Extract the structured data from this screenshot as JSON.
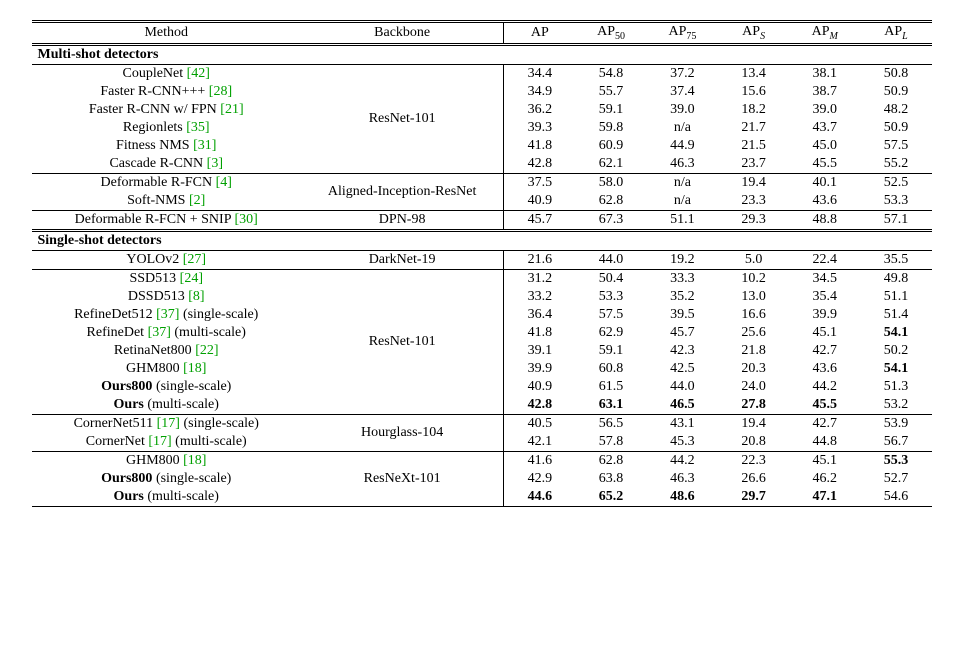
{
  "headers": {
    "method": "Method",
    "backbone": "Backbone",
    "ap": "AP",
    "ap50": "AP",
    "ap50_sub": "50",
    "ap75": "AP",
    "ap75_sub": "75",
    "aps": "AP",
    "aps_sub": "S",
    "apm": "AP",
    "apm_sub": "M",
    "apl": "AP",
    "apl_sub": "L"
  },
  "section_multi": "Multi-shot detectors",
  "section_single": "Single-shot detectors",
  "backbones": {
    "resnet101": "ResNet-101",
    "aligned": "Aligned-Inception-ResNet",
    "dpn98": "DPN-98",
    "darknet19": "DarkNet-19",
    "hourglass": "Hourglass-104",
    "resnext101": "ResNeXt-101"
  },
  "rows": {
    "couplenet": {
      "name": "CoupleNet ",
      "ref": "[42]",
      "ap": "34.4",
      "ap50": "54.8",
      "ap75": "37.2",
      "aps": "13.4",
      "apm": "38.1",
      "apl": "50.8"
    },
    "frcnnppp": {
      "name": "Faster R-CNN+++ ",
      "ref": "[28]",
      "ap": "34.9",
      "ap50": "55.7",
      "ap75": "37.4",
      "aps": "15.6",
      "apm": "38.7",
      "apl": "50.9"
    },
    "frcnnfpn": {
      "name": "Faster R-CNN w/ FPN ",
      "ref": "[21]",
      "ap": "36.2",
      "ap50": "59.1",
      "ap75": "39.0",
      "aps": "18.2",
      "apm": "39.0",
      "apl": "48.2"
    },
    "regionlets": {
      "name": "Regionlets ",
      "ref": "[35]",
      "ap": "39.3",
      "ap50": "59.8",
      "ap75": "n/a",
      "aps": "21.7",
      "apm": "43.7",
      "apl": "50.9"
    },
    "fitness": {
      "name": "Fitness NMS ",
      "ref": "[31]",
      "ap": "41.8",
      "ap50": "60.9",
      "ap75": "44.9",
      "aps": "21.5",
      "apm": "45.0",
      "apl": "57.5"
    },
    "cascade": {
      "name": "Cascade R-CNN ",
      "ref": "[3]",
      "ap": "42.8",
      "ap50": "62.1",
      "ap75": "46.3",
      "aps": "23.7",
      "apm": "45.5",
      "apl": "55.2"
    },
    "defrfcn": {
      "name": "Deformable R-FCN ",
      "ref": "[4]",
      "ap": "37.5",
      "ap50": "58.0",
      "ap75": "n/a",
      "aps": "19.4",
      "apm": "40.1",
      "apl": "52.5"
    },
    "softnms": {
      "name": "Soft-NMS ",
      "ref": "[2]",
      "ap": "40.9",
      "ap50": "62.8",
      "ap75": "n/a",
      "aps": "23.3",
      "apm": "43.6",
      "apl": "53.3"
    },
    "defsnip": {
      "name": "Deformable R-FCN + SNIP ",
      "ref": "[30]",
      "ap": "45.7",
      "ap50": "67.3",
      "ap75": "51.1",
      "aps": "29.3",
      "apm": "48.8",
      "apl": "57.1"
    },
    "yolov2": {
      "name": "YOLOv2 ",
      "ref": "[27]",
      "ap": "21.6",
      "ap50": "44.0",
      "ap75": "19.2",
      "aps": "5.0",
      "apm": "22.4",
      "apl": "35.5"
    },
    "ssd513": {
      "name": "SSD513 ",
      "ref": "[24]",
      "ap": "31.2",
      "ap50": "50.4",
      "ap75": "33.3",
      "aps": "10.2",
      "apm": "34.5",
      "apl": "49.8"
    },
    "dssd513": {
      "name": "DSSD513 ",
      "ref": "[8]",
      "ap": "33.2",
      "ap50": "53.3",
      "ap75": "35.2",
      "aps": "13.0",
      "apm": "35.4",
      "apl": "51.1"
    },
    "refinedet512": {
      "name": "RefineDet512 ",
      "ref": "[37]",
      "suffix": " (single-scale)",
      "ap": "36.4",
      "ap50": "57.5",
      "ap75": "39.5",
      "aps": "16.6",
      "apm": "39.9",
      "apl": "51.4"
    },
    "refinedetms": {
      "name": "RefineDet ",
      "ref": "[37]",
      "suffix": " (multi-scale)",
      "ap": "41.8",
      "ap50": "62.9",
      "ap75": "45.7",
      "aps": "25.6",
      "apm": "45.1",
      "apl": "54.1"
    },
    "retinanet": {
      "name": "RetinaNet800 ",
      "ref": "[22]",
      "ap": "39.1",
      "ap50": "59.1",
      "ap75": "42.3",
      "aps": "21.8",
      "apm": "42.7",
      "apl": "50.2"
    },
    "ghm800a": {
      "name": "GHM800 ",
      "ref": "[18]",
      "ap": "39.9",
      "ap50": "60.8",
      "ap75": "42.5",
      "aps": "20.3",
      "apm": "43.6",
      "apl": "54.1"
    },
    "ours800a": {
      "name": "Ours800",
      "suffix": " (single-scale)",
      "ap": "40.9",
      "ap50": "61.5",
      "ap75": "44.0",
      "aps": "24.0",
      "apm": "44.2",
      "apl": "51.3"
    },
    "oursmsa": {
      "name": "Ours",
      "suffix": " (multi-scale)",
      "ap": "42.8",
      "ap50": "63.1",
      "ap75": "46.5",
      "aps": "27.8",
      "apm": "45.5",
      "apl": "53.2"
    },
    "cornernet511": {
      "name": "CornerNet511 ",
      "ref": "[17]",
      "suffix": " (single-scale)",
      "ap": "40.5",
      "ap50": "56.5",
      "ap75": "43.1",
      "aps": "19.4",
      "apm": "42.7",
      "apl": "53.9"
    },
    "cornernetms": {
      "name": "CornerNet ",
      "ref": "[17]",
      "suffix": " (multi-scale)",
      "ap": "42.1",
      "ap50": "57.8",
      "ap75": "45.3",
      "aps": "20.8",
      "apm": "44.8",
      "apl": "56.7"
    },
    "ghm800b": {
      "name": "GHM800 ",
      "ref": "[18]",
      "ap": "41.6",
      "ap50": "62.8",
      "ap75": "44.2",
      "aps": "22.3",
      "apm": "45.1",
      "apl": "55.3"
    },
    "ours800b": {
      "name": "Ours800",
      "suffix": " (single-scale)",
      "ap": "42.9",
      "ap50": "63.8",
      "ap75": "46.3",
      "aps": "26.6",
      "apm": "46.2",
      "apl": "52.7"
    },
    "oursmsb": {
      "name": "Ours",
      "suffix": " (multi-scale)",
      "ap": "44.6",
      "ap50": "65.2",
      "ap75": "48.6",
      "aps": "29.7",
      "apm": "47.1",
      "apl": "54.6"
    }
  }
}
